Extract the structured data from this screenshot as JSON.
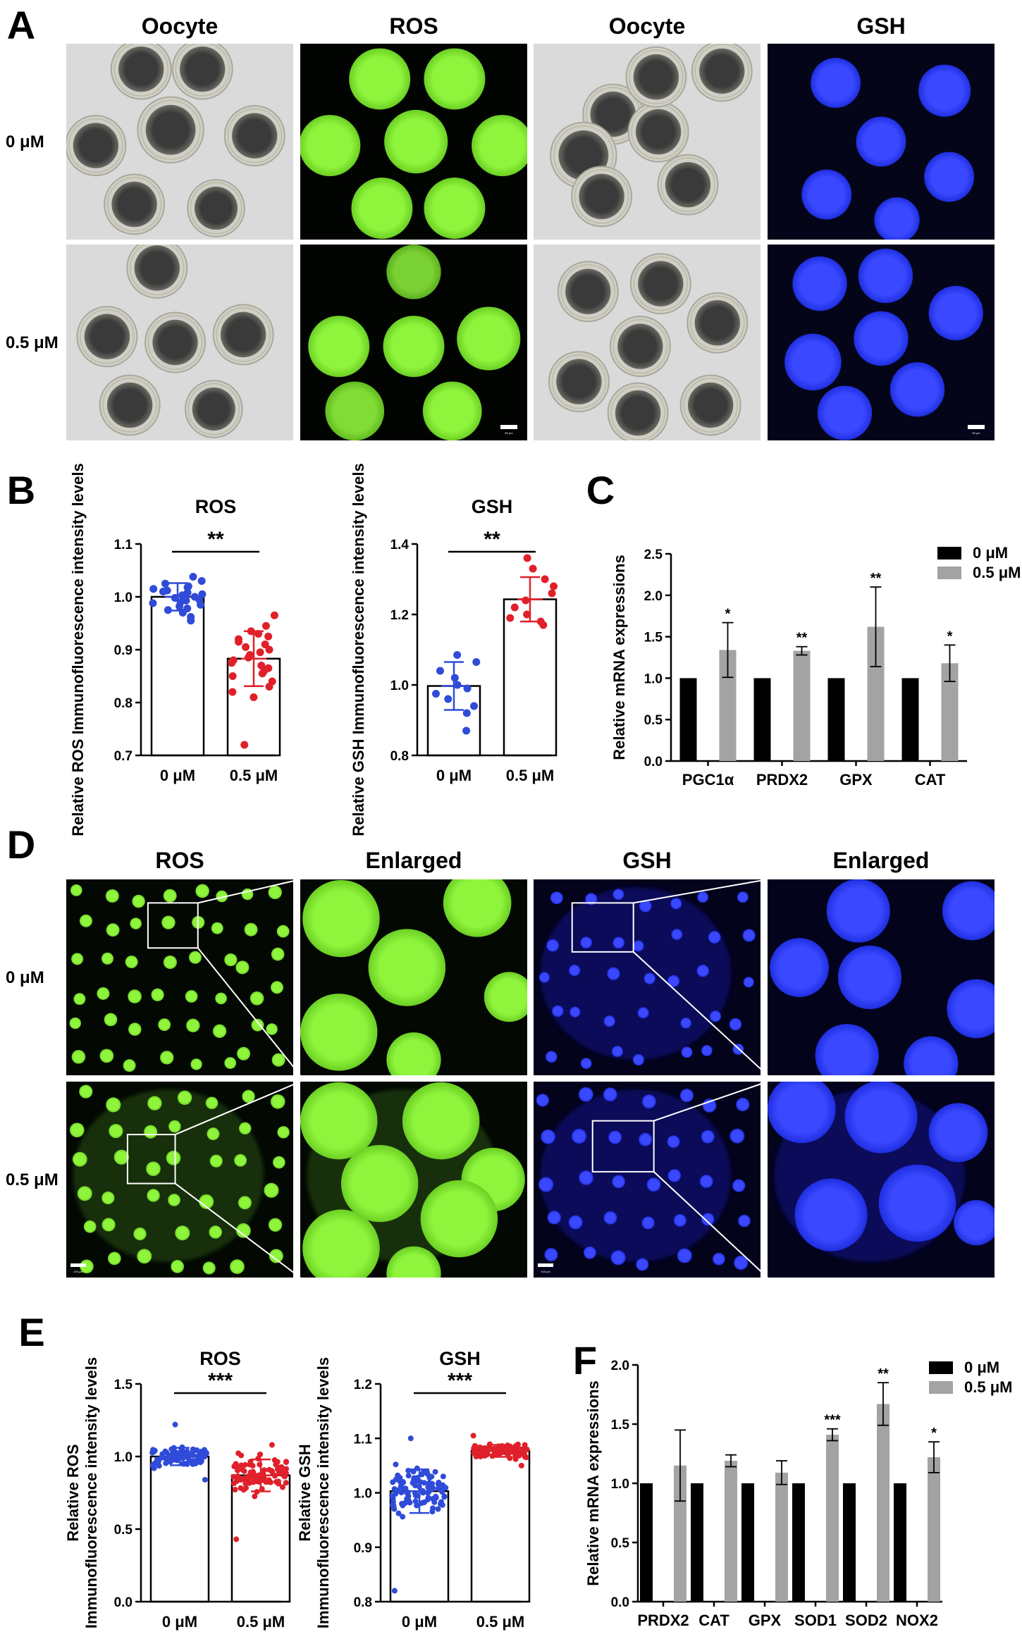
{
  "colors": {
    "ctrl": "#2f4bd8",
    "treat": "#e0202a",
    "black_bar": "#000000",
    "grey_bar": "#a3a3a3",
    "ros_green": "#8cf23a",
    "gsh_blue": "#2a3cf5",
    "bright_bg": "#dadada"
  },
  "panelA": {
    "label": "A",
    "columns": [
      "Oocyte",
      "ROS",
      "Oocyte",
      "GSH"
    ],
    "rows": [
      "0 μM",
      "0.5 μM"
    ],
    "scalebar": "50 μm"
  },
  "panelD": {
    "label": "D",
    "columns": [
      "ROS",
      "Enlarged",
      "GSH",
      "Enlarged"
    ],
    "rows": [
      "0 μM",
      "0.5 μM"
    ],
    "scalebar": "100 μm"
  },
  "panelB": {
    "label": "B"
  },
  "panelC": {
    "label": "C"
  },
  "panelE": {
    "label": "E"
  },
  "panelF": {
    "label": "F"
  },
  "chart_data": [
    {
      "id": "B-ROS",
      "type": "bar",
      "panel": "B",
      "title": "ROS",
      "ylabel": "Relative ROS Immunofluorescence intensity levels",
      "categories": [
        "0 μM",
        "0.5 μM"
      ],
      "means": [
        1.0,
        0.883
      ],
      "sd": [
        0.026,
        0.052
      ],
      "ylim": [
        0.7,
        1.1
      ],
      "yticks": [
        "0.7",
        "0.8",
        "0.9",
        "1.0",
        "1.1"
      ],
      "significance": "**",
      "points": [
        [
          1.038,
          1.03,
          1.025,
          1.02,
          1.018,
          1.015,
          1.012,
          1.01,
          1.008,
          1.005,
          1.003,
          1.0,
          0.998,
          0.995,
          0.993,
          0.99,
          0.988,
          0.985,
          0.982,
          0.978,
          0.975,
          0.97,
          0.962,
          0.955
        ],
        [
          0.965,
          0.945,
          0.935,
          0.93,
          0.925,
          0.92,
          0.915,
          0.91,
          0.905,
          0.9,
          0.895,
          0.89,
          0.885,
          0.88,
          0.875,
          0.87,
          0.865,
          0.86,
          0.855,
          0.85,
          0.84,
          0.83,
          0.82,
          0.81,
          0.72
        ]
      ]
    },
    {
      "id": "B-GSH",
      "type": "bar",
      "panel": "B",
      "title": "GSH",
      "ylabel": "Relative GSH Immunofluorescence intensity levels",
      "categories": [
        "0 μM",
        "0.5 μM"
      ],
      "means": [
        0.997,
        1.243
      ],
      "sd": [
        0.068,
        0.063
      ],
      "ylim": [
        0.8,
        1.4
      ],
      "yticks": [
        "0.8",
        "1.0",
        "1.2",
        "1.4"
      ],
      "significance": "**",
      "points": [
        [
          1.085,
          1.065,
          1.04,
          1.02,
          1.0,
          0.99,
          0.975,
          0.96,
          0.94,
          0.92,
          0.87
        ],
        [
          1.36,
          1.33,
          1.3,
          1.28,
          1.26,
          1.24,
          1.22,
          1.2,
          1.19,
          1.18,
          1.17
        ]
      ]
    },
    {
      "id": "C",
      "type": "bar",
      "panel": "C",
      "ylabel": "Relative mRNA expressions",
      "categories": [
        "PGC1α",
        "PRDX2",
        "GPX",
        "CAT"
      ],
      "series": [
        {
          "name": "0 μM",
          "values": [
            1.0,
            1.0,
            1.0,
            1.0
          ],
          "err": [
            0,
            0,
            0,
            0
          ]
        },
        {
          "name": "0.5 μM",
          "values": [
            1.34,
            1.33,
            1.62,
            1.18
          ],
          "err": [
            0.33,
            0.05,
            0.48,
            0.22
          ]
        }
      ],
      "significance": [
        "*",
        "**",
        "**",
        "*"
      ],
      "ylim": [
        0.0,
        2.5
      ],
      "yticks": [
        "0.0",
        "0.5",
        "1.0",
        "1.5",
        "2.0",
        "2.5"
      ],
      "legend": "top-right"
    },
    {
      "id": "E-ROS",
      "type": "bar",
      "panel": "E",
      "title": "ROS",
      "ylabel_lines": [
        "Relative ROS",
        "Immunofluorescence intensity levels"
      ],
      "categories": [
        "0 μM",
        "0.5 μM"
      ],
      "means": [
        1.0,
        0.87
      ],
      "sd": [
        0.06,
        0.11
      ],
      "ylim": [
        0.0,
        1.5
      ],
      "yticks": [
        "0.0",
        "0.5",
        "1.0",
        "1.5"
      ],
      "significance": "***",
      "n": [
        90,
        90
      ],
      "range": [
        [
          0.84,
          1.22
        ],
        [
          0.43,
          1.08
        ]
      ]
    },
    {
      "id": "E-GSH",
      "type": "bar",
      "panel": "E",
      "title": "GSH",
      "ylabel_lines": [
        "Relative GSH",
        "Immunofluorescence intensity levels"
      ],
      "categories": [
        "0 μM",
        "0.5 μM"
      ],
      "means": [
        1.003,
        1.077
      ],
      "sd": [
        0.04,
        0.011
      ],
      "ylim": [
        0.8,
        1.2
      ],
      "yticks": [
        "0.8",
        "0.9",
        "1.0",
        "1.1",
        "1.2"
      ],
      "significance": "***",
      "n": [
        100,
        110
      ],
      "range": [
        [
          0.82,
          1.1
        ],
        [
          1.05,
          1.105
        ]
      ]
    },
    {
      "id": "F",
      "type": "bar",
      "panel": "F",
      "ylabel": "Relative mRNA expressions",
      "categories": [
        "PRDX2",
        "CAT",
        "GPX",
        "SOD1",
        "SOD2",
        "NOX2"
      ],
      "series": [
        {
          "name": "0 μM",
          "values": [
            1.0,
            1.0,
            1.0,
            1.0,
            1.0,
            1.0
          ],
          "err": [
            0,
            0,
            0,
            0,
            0,
            0
          ]
        },
        {
          "name": "0.5 μM",
          "values": [
            1.15,
            1.19,
            1.09,
            1.41,
            1.67,
            1.22
          ],
          "err": [
            0.3,
            0.05,
            0.1,
            0.05,
            0.18,
            0.13
          ]
        }
      ],
      "significance": [
        "",
        "",
        "",
        "***",
        "**",
        "*"
      ],
      "ylim": [
        0.0,
        2.0
      ],
      "yticks": [
        "0.0",
        "0.5",
        "1.0",
        "1.5",
        "2.0"
      ],
      "legend": "top-right"
    }
  ]
}
